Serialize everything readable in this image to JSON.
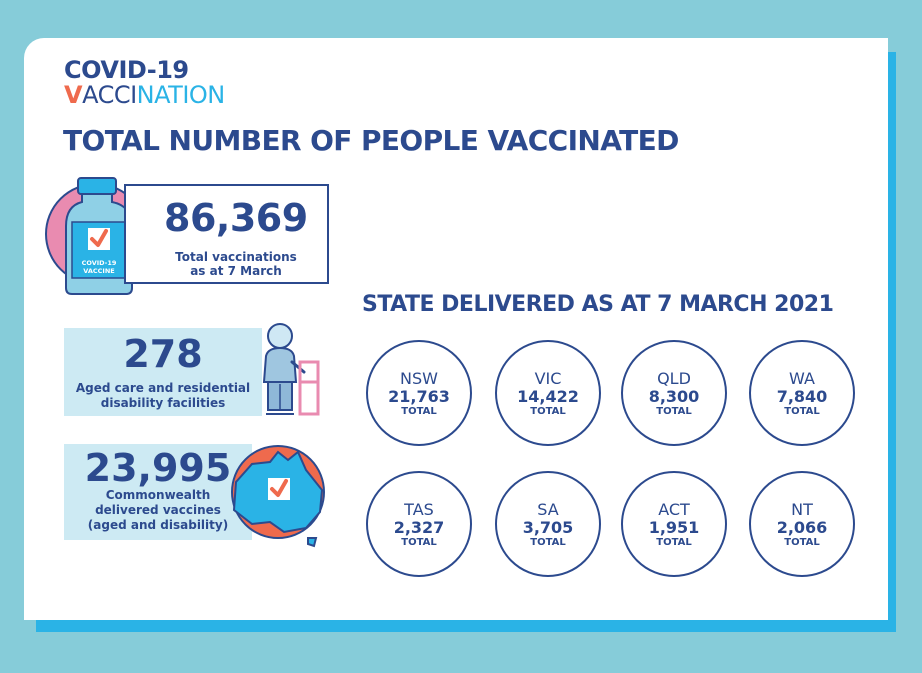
{
  "logo": {
    "line1": "COVID-19",
    "v_letter": "V",
    "accent": "ACCI",
    "rest": "NATION"
  },
  "title": "TOTAL NUMBER OF PEOPLE VACCINATED",
  "vaccine_label": {
    "line1": "COVID-19",
    "line2": "VACCINE"
  },
  "total": {
    "value": "86,369",
    "label_line1": "Total vaccinations",
    "label_line2": "as at 7 March"
  },
  "aged_care": {
    "value": "278",
    "label_line1": "Aged care and residential",
    "label_line2": "disability facilities"
  },
  "commonwealth": {
    "value": "23,995",
    "label_line1": "Commonwealth",
    "label_line2": "delivered vaccines",
    "label_line3": "(aged and disability)"
  },
  "states_title": "STATE DELIVERED AS AT 7 MARCH 2021",
  "states": [
    {
      "name": "NSW",
      "value": "21,763",
      "unit": "TOTAL"
    },
    {
      "name": "VIC",
      "value": "14,422",
      "unit": "TOTAL"
    },
    {
      "name": "QLD",
      "value": "8,300",
      "unit": "TOTAL"
    },
    {
      "name": "WA",
      "value": "7,840",
      "unit": "TOTAL"
    },
    {
      "name": "TAS",
      "value": "2,327",
      "unit": "TOTAL"
    },
    {
      "name": "SA",
      "value": "3,705",
      "unit": "TOTAL"
    },
    {
      "name": "ACT",
      "value": "1,951",
      "unit": "TOTAL"
    },
    {
      "name": "NT",
      "value": "2,066",
      "unit": "TOTAL"
    }
  ],
  "colors": {
    "navy": "#2c4a8e",
    "sky": "#2ab3e6",
    "coral": "#ef6a4d",
    "pink": "#e98bb0",
    "pale": "#cdeaf3"
  }
}
